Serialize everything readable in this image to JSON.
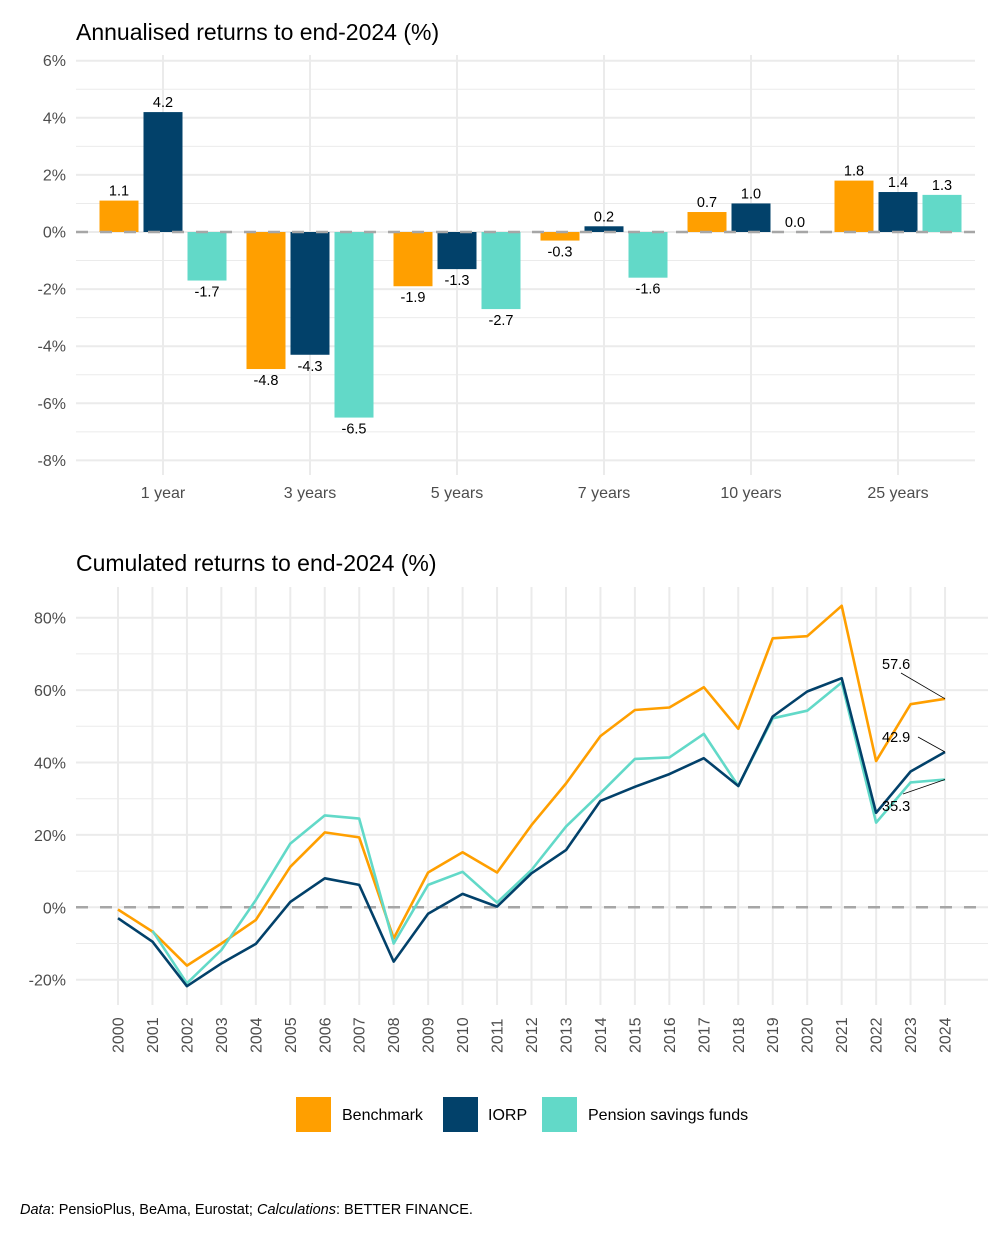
{
  "colors": {
    "Benchmark": "#FF9F00",
    "IORP": "#02416A",
    "Pension savings funds": "#62D9C8",
    "grid": "#EBEBEB",
    "zero_line": "#A6A6A6"
  },
  "chart_data": [
    {
      "type": "bar",
      "title": "Annualised returns to end-2024 (%)",
      "xlabel": "",
      "ylabel": "",
      "categories": [
        "1 year",
        "3 years",
        "5 years",
        "7 years",
        "10 years",
        "25 years"
      ],
      "series": [
        {
          "name": "Benchmark",
          "values": [
            1.1,
            -4.8,
            -1.9,
            -0.3,
            0.7,
            1.8
          ],
          "labels": [
            "1.1",
            "-4.8",
            "-1.9",
            "-0.3",
            "0.7",
            "1.8"
          ]
        },
        {
          "name": "IORP",
          "values": [
            4.2,
            -4.3,
            -1.3,
            0.2,
            1.0,
            1.4
          ],
          "labels": [
            "4.2",
            "-4.3",
            "-1.3",
            "0.2",
            "1.0",
            "1.4"
          ]
        },
        {
          "name": "Pension savings funds",
          "values": [
            -1.7,
            -6.5,
            -2.7,
            -1.6,
            0.0,
            1.3
          ],
          "labels": [
            "-1.7",
            "-6.5",
            "-2.7",
            "-1.6",
            "0.0",
            "1.3"
          ]
        }
      ],
      "yticks": [
        6,
        4,
        2,
        0,
        -2,
        -4,
        -6,
        -8
      ],
      "ytick_labels": [
        "6%",
        "4%",
        "2%",
        "0%",
        "-2%",
        "-4%",
        "-6%",
        "-8%"
      ],
      "ylim": [
        -8.5,
        6.3
      ],
      "grid": true,
      "zero_line": "dashed"
    },
    {
      "type": "line",
      "title": "Cumulated returns to end-2024 (%)",
      "xlabel": "",
      "ylabel": "",
      "x": [
        2000,
        2001,
        2002,
        2003,
        2004,
        2005,
        2006,
        2007,
        2008,
        2009,
        2010,
        2011,
        2012,
        2013,
        2014,
        2015,
        2016,
        2017,
        2018,
        2019,
        2020,
        2021,
        2022,
        2023,
        2024
      ],
      "x_tick_labels": [
        "2000",
        "2001",
        "2002",
        "2003",
        "2004",
        "2005",
        "2006",
        "2007",
        "2008",
        "2009",
        "2010",
        "2011",
        "2012",
        "2013",
        "2014",
        "2015",
        "2016",
        "2017",
        "2018",
        "2019",
        "2020",
        "2021",
        "2022",
        "2023",
        "2024"
      ],
      "series": [
        {
          "name": "Benchmark",
          "values": [
            -0.6,
            -6.7,
            -16.1,
            -10.0,
            -3.5,
            11.2,
            20.7,
            19.3,
            -8.6,
            9.6,
            15.2,
            9.6,
            22.7,
            34.2,
            47.3,
            54.5,
            55.2,
            60.8,
            49.3,
            74.3,
            74.9,
            83.3,
            40.4,
            56.1,
            57.6
          ],
          "end_label": "57.6"
        },
        {
          "name": "IORP",
          "values": [
            -3.0,
            -9.5,
            -21.8,
            -15.5,
            -10.1,
            1.5,
            8.0,
            6.2,
            -15.0,
            -1.8,
            3.7,
            0.2,
            9.4,
            15.8,
            29.4,
            33.3,
            36.8,
            41.2,
            33.5,
            52.7,
            59.6,
            63.3,
            26.1,
            37.5,
            42.9
          ],
          "end_label": "42.9"
        },
        {
          "name": "Pension savings funds",
          "values": [
            null,
            -6.5,
            -21.0,
            -11.8,
            2.0,
            17.6,
            25.4,
            24.5,
            -10.0,
            6.2,
            9.8,
            1.3,
            10.3,
            22.3,
            31.5,
            41.0,
            41.4,
            47.9,
            33.5,
            52.2,
            54.3,
            62.1,
            23.4,
            34.5,
            35.3
          ],
          "end_label": "35.3"
        }
      ],
      "yticks": [
        80,
        60,
        40,
        20,
        0,
        -20
      ],
      "ytick_labels": [
        "80%",
        "60%",
        "40%",
        "20%",
        "0%",
        "-20%"
      ],
      "ylim": [
        -27,
        90
      ],
      "grid": true,
      "zero_line": "dashed"
    }
  ],
  "legend": {
    "placement": "bottom",
    "items": [
      "Benchmark",
      "IORP",
      "Pension savings funds"
    ]
  },
  "caption": {
    "data_label": "Data",
    "data_text": ": PensioPlus, BeAma, Eurostat; ",
    "calc_label": "Calculations",
    "calc_text": ": BETTER FINANCE."
  }
}
